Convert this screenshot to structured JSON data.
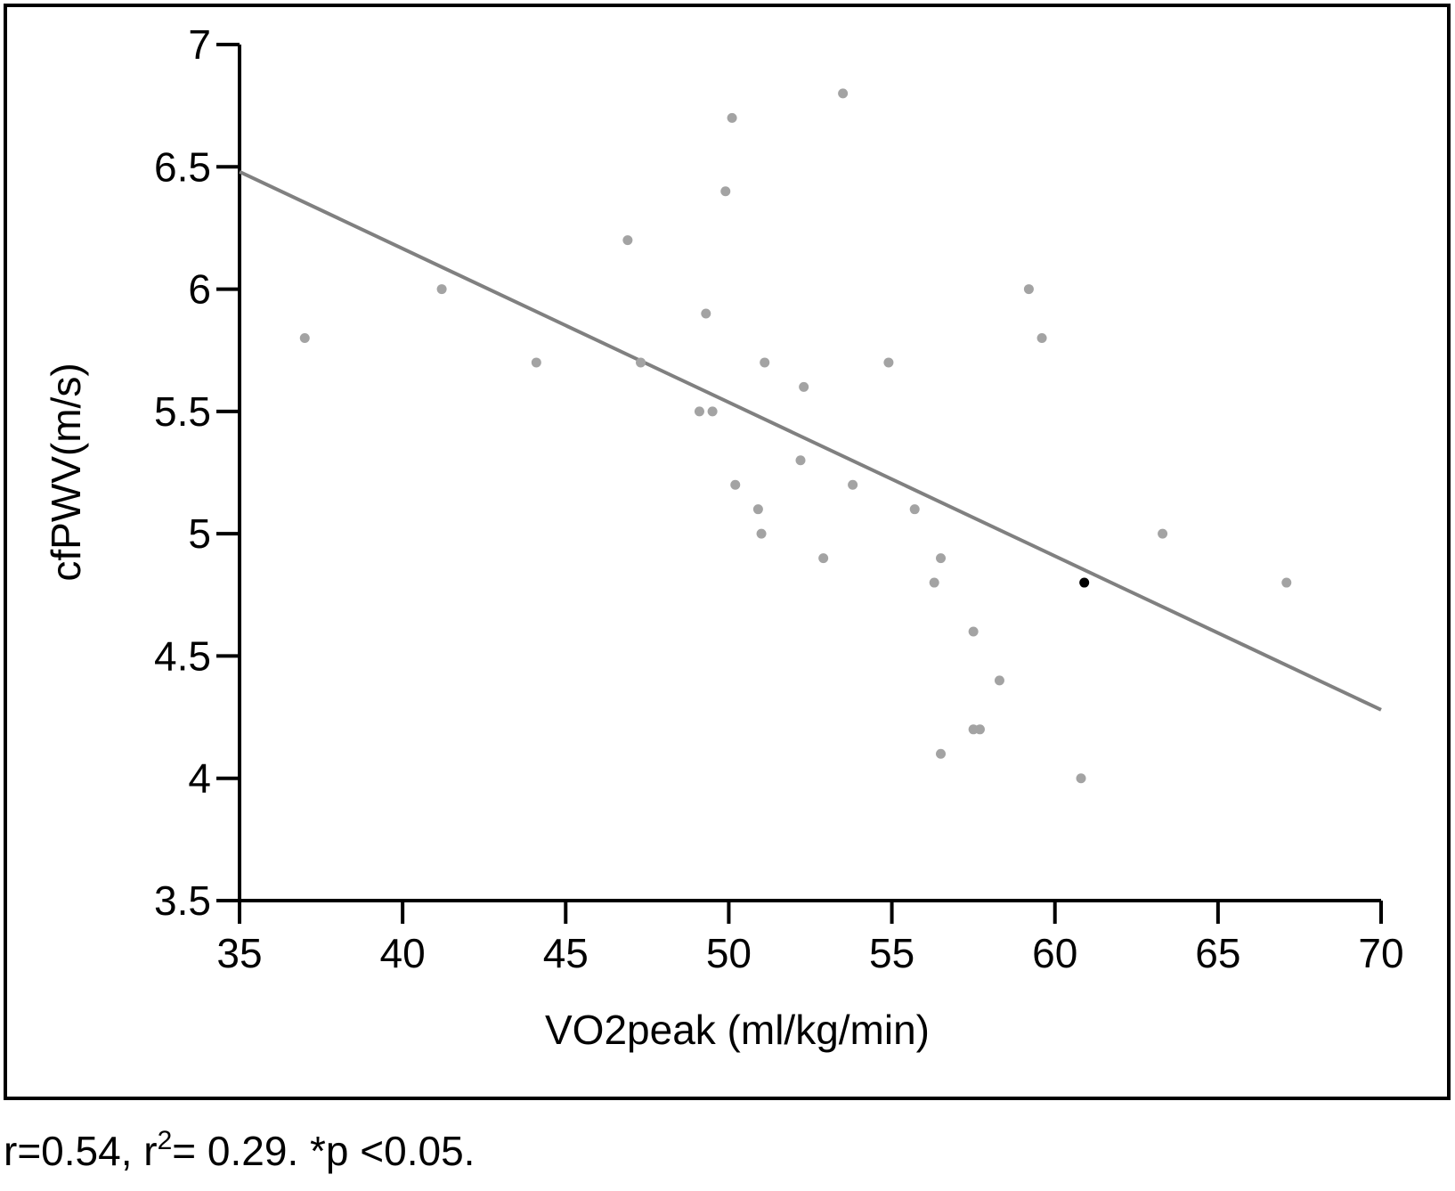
{
  "chart_data": {
    "type": "scatter",
    "xlabel": "VO2peak (ml/kg/min)",
    "ylabel": "cfPWV(m/s)",
    "caption": [
      "r=0.54, r",
      "2",
      "= 0.29. *p <0.05."
    ],
    "xlim": [
      35,
      70
    ],
    "ylim": [
      3.5,
      7
    ],
    "xticks": [
      35,
      40,
      45,
      50,
      55,
      60,
      65,
      70
    ],
    "yticks": [
      3.5,
      4,
      4.5,
      5,
      5.5,
      6,
      6.5,
      7
    ],
    "x": [
      37.0,
      41.2,
      44.1,
      46.9,
      47.3,
      49.3,
      49.1,
      49.5,
      49.9,
      50.1,
      50.2,
      50.9,
      51.0,
      51.1,
      52.2,
      52.3,
      52.9,
      53.5,
      53.8,
      54.9,
      55.7,
      56.3,
      56.5,
      56.5,
      57.5,
      57.5,
      57.7,
      58.3,
      59.2,
      59.6,
      60.8,
      60.9,
      63.3,
      67.1
    ],
    "y": [
      5.8,
      6.0,
      5.7,
      6.2,
      5.7,
      5.9,
      5.5,
      5.5,
      6.4,
      6.7,
      5.2,
      5.1,
      5.0,
      5.7,
      5.3,
      5.6,
      4.9,
      6.8,
      5.2,
      5.7,
      5.1,
      4.8,
      4.9,
      4.1,
      4.6,
      4.2,
      4.2,
      4.4,
      6.0,
      5.8,
      4.0,
      4.8,
      5.0,
      4.8
    ],
    "colors": [
      "#a3a3a3",
      "#a3a3a3",
      "#a3a3a3",
      "#a3a3a3",
      "#a3a3a3",
      "#a3a3a3",
      "#a3a3a3",
      "#a3a3a3",
      "#a3a3a3",
      "#a3a3a3",
      "#a3a3a3",
      "#a3a3a3",
      "#a3a3a3",
      "#a3a3a3",
      "#a3a3a3",
      "#a3a3a3",
      "#a3a3a3",
      "#a3a3a3",
      "#a3a3a3",
      "#a3a3a3",
      "#a3a3a3",
      "#a3a3a3",
      "#a3a3a3",
      "#a3a3a3",
      "#a3a3a3",
      "#a3a3a3",
      "#a3a3a3",
      "#a3a3a3",
      "#a3a3a3",
      "#a3a3a3",
      "#a3a3a3",
      "#000000",
      "#a3a3a3",
      "#a3a3a3"
    ],
    "fit_line": {
      "x": [
        35,
        70
      ],
      "y": [
        6.48,
        4.28
      ],
      "color": "#808080"
    }
  }
}
